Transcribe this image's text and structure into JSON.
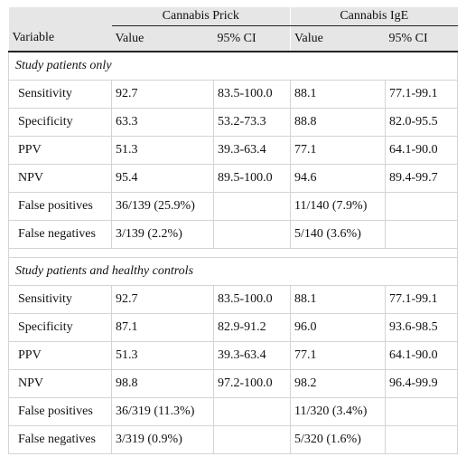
{
  "header": {
    "group1": "Cannabis Prick",
    "group2": "Cannabis IgE",
    "variable": "Variable",
    "value1": "Value",
    "ci1": "95% CI",
    "value2": "Value",
    "ci2": "95% CI"
  },
  "section1": {
    "title": "Study patients only",
    "rows": [
      {
        "label": "Sensitivity",
        "pv": "92.7",
        "pci": "83.5-100.0",
        "iv": "88.1",
        "ici": "77.1-99.1"
      },
      {
        "label": "Specificity",
        "pv": "63.3",
        "pci": "53.2-73.3",
        "iv": "88.8",
        "ici": "82.0-95.5"
      },
      {
        "label": "PPV",
        "pv": "51.3",
        "pci": "39.3-63.4",
        "iv": "77.1",
        "ici": "64.1-90.0"
      },
      {
        "label": "NPV",
        "pv": "95.4",
        "pci": "89.5-100.0",
        "iv": "94.6",
        "ici": "89.4-99.7"
      },
      {
        "label": "False positives",
        "pv": "36/139 (25.9%)",
        "pci": "",
        "iv": "11/140 (7.9%)",
        "ici": ""
      },
      {
        "label": "False negatives",
        "pv": "3/139 (2.2%)",
        "pci": "",
        "iv": "5/140 (3.6%)",
        "ici": ""
      }
    ]
  },
  "section2": {
    "title": "Study patients and healthy controls",
    "rows": [
      {
        "label": "Sensitivity",
        "pv": "92.7",
        "pci": "83.5-100.0",
        "iv": "88.1",
        "ici": "77.1-99.1"
      },
      {
        "label": "Specificity",
        "pv": "87.1",
        "pci": "82.9-91.2",
        "iv": "96.0",
        "ici": "93.6-98.5"
      },
      {
        "label": "PPV",
        "pv": "51.3",
        "pci": "39.3-63.4",
        "iv": "77.1",
        "ici": "64.1-90.0"
      },
      {
        "label": "NPV",
        "pv": "98.8",
        "pci": "97.2-100.0",
        "iv": "98.2",
        "ici": "96.4-99.9"
      },
      {
        "label": "False positives",
        "pv": "36/319 (11.3%)",
        "pci": "",
        "iv": "11/320 (3.4%)",
        "ici": ""
      },
      {
        "label": "False negatives",
        "pv": "3/319 (0.9%)",
        "pci": "",
        "iv": "5/320 (1.6%)",
        "ici": ""
      }
    ]
  }
}
